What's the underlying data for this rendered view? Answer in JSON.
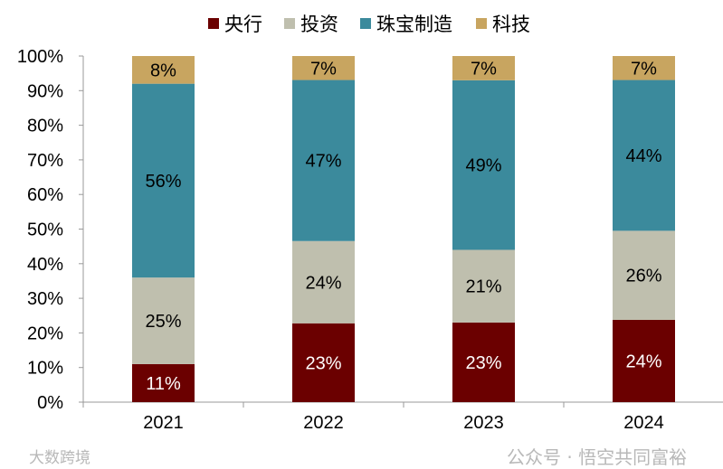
{
  "chart_data": {
    "type": "bar",
    "stacked": true,
    "percent_stacked": true,
    "categories": [
      "2021",
      "2022",
      "2023",
      "2024"
    ],
    "series": [
      {
        "name": "央行",
        "color": "#6b0000",
        "values": [
          11,
          23,
          23,
          24
        ]
      },
      {
        "name": "投资",
        "color": "#bfbfae",
        "values": [
          25,
          24,
          21,
          26
        ]
      },
      {
        "name": "珠宝制造",
        "color": "#3b8a9c",
        "values": [
          56,
          47,
          49,
          44
        ]
      },
      {
        "name": "科技",
        "color": "#c8a560",
        "values": [
          8,
          7,
          7,
          7
        ]
      }
    ],
    "ylim": [
      0,
      100
    ],
    "yticks": [
      "0%",
      "10%",
      "20%",
      "30%",
      "40%",
      "50%",
      "60%",
      "70%",
      "80%",
      "90%",
      "100%"
    ],
    "data_labels": true,
    "legend_position": "top",
    "grid": false
  },
  "watermarks": {
    "left": "大数跨境",
    "right": "公众号 · 悟空共同富裕"
  }
}
